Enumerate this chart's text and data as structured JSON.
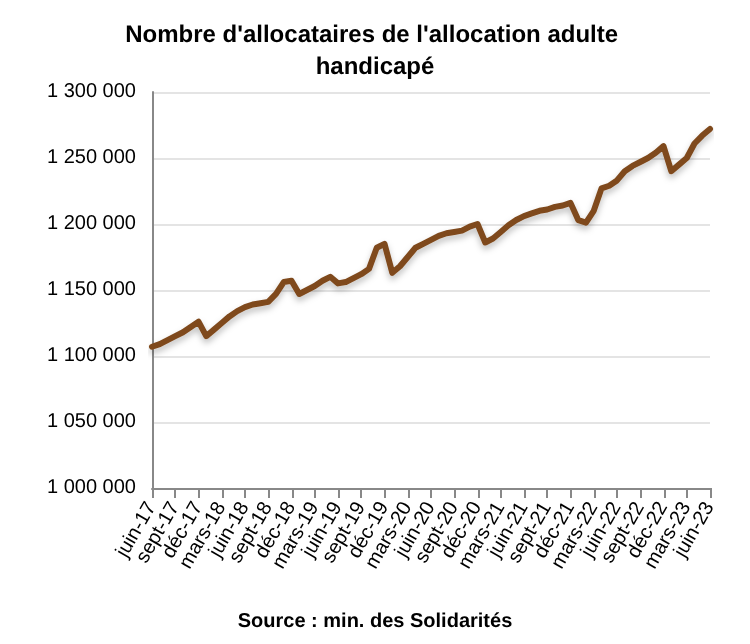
{
  "chart_data": {
    "type": "line",
    "title": "Nombre d'allocataires de l'allocation adulte handicapé",
    "categories": [
      "juin-17",
      null,
      null,
      "sept-17",
      null,
      null,
      "déc-17",
      null,
      null,
      "mars-18",
      null,
      null,
      "juin-18",
      null,
      null,
      "sept-18",
      null,
      null,
      "déc-18",
      null,
      null,
      "mars-19",
      null,
      null,
      "juin-19",
      null,
      null,
      "sept-19",
      null,
      null,
      "déc-19",
      null,
      null,
      "mars-20",
      null,
      null,
      "juin-20",
      null,
      null,
      "sept-20",
      null,
      null,
      "déc-20",
      null,
      null,
      "mars-21",
      null,
      null,
      "juin-21",
      null,
      null,
      "sept-21",
      null,
      null,
      "déc-21",
      null,
      null,
      "mars-22",
      null,
      null,
      "juin-22",
      null,
      null,
      "sept-22",
      null,
      null,
      "déc-22",
      null,
      null,
      "mars-23",
      null,
      null,
      "juin-23"
    ],
    "series": [
      {
        "color": "#7f4a1e",
        "values": [
          1107000,
          1109000,
          1112000,
          1115000,
          1118000,
          1122000,
          1126000,
          1115000,
          1120000,
          1125000,
          1130000,
          1134000,
          1137000,
          1139000,
          1140000,
          1141000,
          1147000,
          1156000,
          1157000,
          1147000,
          1150000,
          1153000,
          1157000,
          1160000,
          1155000,
          1156000,
          1159000,
          1162000,
          1166000,
          1182000,
          1185000,
          1163000,
          1168000,
          1175000,
          1182000,
          1185000,
          1188000,
          1191000,
          1193000,
          1194000,
          1195000,
          1198000,
          1200000,
          1186000,
          1189000,
          1194000,
          1199000,
          1203000,
          1206000,
          1208000,
          1210000,
          1211000,
          1213000,
          1214000,
          1216000,
          1203000,
          1201000,
          1210000,
          1227000,
          1229000,
          1233000,
          1240000,
          1244000,
          1247000,
          1250000,
          1254000,
          1259000,
          1240000,
          1245000,
          1250000,
          1261000,
          1267000,
          1272000
        ]
      }
    ],
    "ylim": [
      1000000,
      1300000
    ],
    "yticks": [
      {
        "value": 1000000,
        "label": "1 000 000"
      },
      {
        "value": 1050000,
        "label": "1 050 000"
      },
      {
        "value": 1100000,
        "label": "1 100 000"
      },
      {
        "value": 1150000,
        "label": "1 150 000"
      },
      {
        "value": 1200000,
        "label": "1 200 000"
      },
      {
        "value": 1250000,
        "label": "1 250 000"
      },
      {
        "value": 1300000,
        "label": "1 300 000"
      }
    ],
    "grid": "y",
    "marker": "none",
    "line_style": "solid",
    "annotations": [
      "Source : min. des Solidarités"
    ]
  }
}
